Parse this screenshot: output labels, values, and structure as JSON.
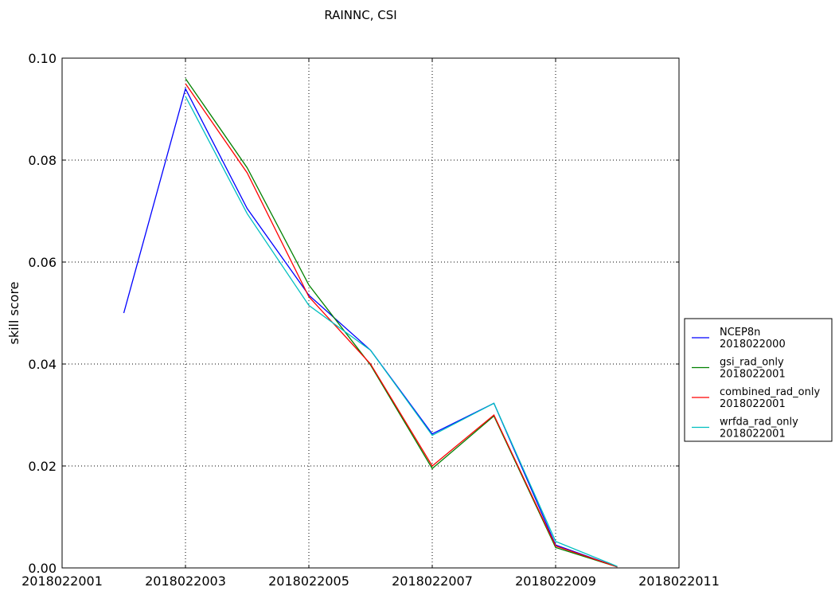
{
  "chart_data": {
    "type": "line",
    "title": "RAINNC, CSI",
    "xlabel": "",
    "ylabel": "skill score",
    "x": [
      2018022002,
      2018022003,
      2018022004,
      2018022005,
      2018022006,
      2018022007,
      2018022008,
      2018022009,
      2018022010
    ],
    "xticks": [
      2018022001,
      2018022003,
      2018022005,
      2018022007,
      2018022009,
      2018022011
    ],
    "xtick_labels": [
      "2018022001",
      "2018022003",
      "2018022005",
      "2018022007",
      "2018022009",
      "2018022011"
    ],
    "xlim": [
      2018022001,
      2018022011
    ],
    "yticks": [
      0.0,
      0.02,
      0.04,
      0.06,
      0.08,
      0.1
    ],
    "ytick_labels": [
      "0.00",
      "0.02",
      "0.04",
      "0.06",
      "0.08",
      "0.10"
    ],
    "ylim": [
      0,
      0.1
    ],
    "grid": true,
    "legend_placement": "outside right",
    "series": [
      {
        "name": "NCEP8n",
        "run": "2018022000",
        "color": "#0000ff",
        "values": [
          0.05,
          0.094,
          0.0705,
          0.0535,
          0.0427,
          0.0263,
          0.0323,
          0.0045,
          0.0002
        ]
      },
      {
        "name": "gsi_rad_only",
        "run": "2018022001",
        "color": "#008000",
        "values": [
          null,
          0.096,
          0.0785,
          0.0555,
          0.0398,
          0.0195,
          0.0298,
          0.004,
          0.0002
        ]
      },
      {
        "name": "combined_rad_only",
        "run": "2018022001",
        "color": "#ff0000",
        "values": [
          null,
          0.095,
          0.0775,
          0.0532,
          0.04,
          0.02,
          0.03,
          0.0043,
          0.0002
        ]
      },
      {
        "name": "wrfda_rad_only",
        "run": "2018022001",
        "color": "#00bfbf",
        "values": [
          null,
          0.0925,
          0.0695,
          0.0515,
          0.0427,
          0.026,
          0.0323,
          0.0052,
          0.0003
        ]
      }
    ]
  }
}
